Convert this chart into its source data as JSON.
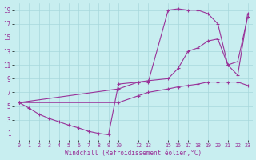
{
  "xlabel": "Windchill (Refroidissement éolien,°C)",
  "bg_color": "#c8eef0",
  "line_color": "#993399",
  "grid_color": "#a8d8dc",
  "xlim": [
    -0.5,
    23.5
  ],
  "ylim": [
    0,
    20
  ],
  "xticks": [
    0,
    1,
    2,
    3,
    4,
    5,
    6,
    7,
    8,
    9,
    10,
    12,
    13,
    15,
    16,
    17,
    18,
    19,
    20,
    21,
    22,
    23
  ],
  "yticks": [
    1,
    3,
    5,
    7,
    9,
    11,
    13,
    15,
    17,
    19
  ],
  "lines": [
    {
      "x": [
        0,
        1,
        2,
        3,
        4,
        5,
        6,
        7,
        8,
        9,
        10,
        12,
        13,
        15,
        16,
        17,
        18,
        19,
        20,
        21,
        22,
        23
      ],
      "y": [
        5.5,
        4.7,
        3.8,
        3.2,
        2.7,
        2.2,
        1.8,
        1.3,
        1.0,
        0.8,
        8.2,
        8.5,
        8.5,
        19.0,
        19.2,
        19.0,
        19.0,
        18.5,
        17.0,
        11.0,
        9.5,
        18.5
      ]
    },
    {
      "x": [
        0,
        10,
        12,
        13,
        15,
        16,
        17,
        18,
        19,
        20,
        21,
        22,
        23
      ],
      "y": [
        5.5,
        7.5,
        8.5,
        8.7,
        9.0,
        10.5,
        13.0,
        13.5,
        14.5,
        14.8,
        11.0,
        11.5,
        18.0
      ]
    },
    {
      "x": [
        0,
        10,
        12,
        13,
        15,
        16,
        17,
        18,
        19,
        20,
        21,
        22,
        23
      ],
      "y": [
        5.5,
        5.5,
        6.5,
        7.0,
        7.5,
        7.8,
        8.0,
        8.2,
        8.5,
        8.5,
        8.5,
        8.5,
        8.0
      ]
    }
  ]
}
